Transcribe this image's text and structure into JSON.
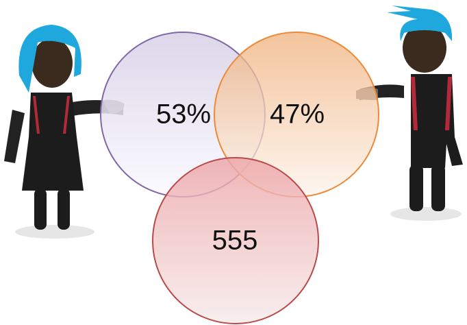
{
  "nodes": [
    {
      "label": "53%"
    },
    {
      "label": "47%"
    },
    {
      "label": "555"
    }
  ]
}
